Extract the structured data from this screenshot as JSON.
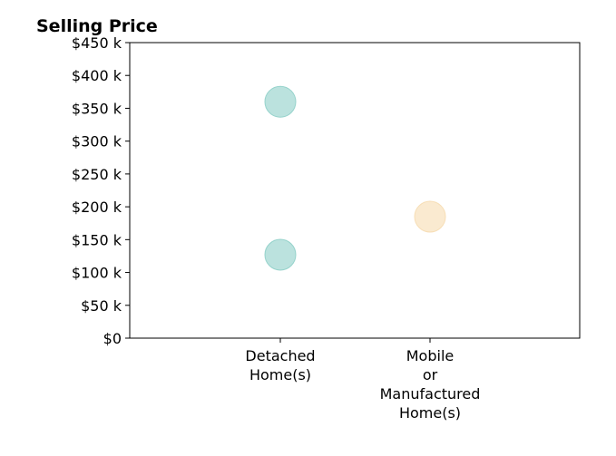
{
  "chart_data": {
    "type": "scatter",
    "title": "Selling Price",
    "xlabel": "",
    "ylabel": "",
    "categories": [
      "Detached Home(s)",
      "Mobile or Manufactured Home(s)"
    ],
    "category_label_lines": [
      [
        "Detached",
        "Home(s)"
      ],
      [
        "Mobile",
        "or",
        "Manufactured",
        "Home(s)"
      ]
    ],
    "ylim": [
      0,
      450000
    ],
    "yticks": [
      0,
      50000,
      100000,
      150000,
      200000,
      250000,
      300000,
      350000,
      400000,
      450000
    ],
    "ytick_labels": [
      "$0",
      "$50 k",
      "$100 k",
      "$150 k",
      "$200 k",
      "$250 k",
      "$300 k",
      "$350 k",
      "$400 k",
      "$450 k"
    ],
    "grid": false,
    "points": [
      {
        "category": "Detached Home(s)",
        "y": 360000,
        "color": "#8ecfc8"
      },
      {
        "category": "Detached Home(s)",
        "y": 127000,
        "color": "#8ecfc8"
      },
      {
        "category": "Mobile or Manufactured Home(s)",
        "y": 185000,
        "color": "#f6dcb0"
      }
    ]
  }
}
